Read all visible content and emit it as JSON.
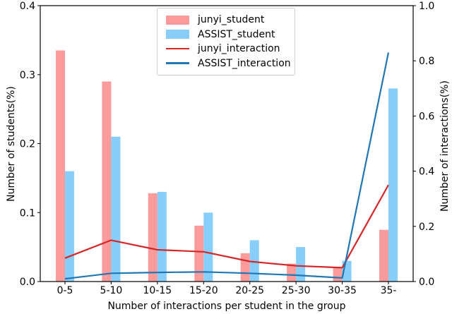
{
  "chart_data": {
    "type": "bar",
    "note_composite": "grouped bars on left axis + two line series on right axis",
    "categories": [
      "0-5",
      "5-10",
      "10-15",
      "15-20",
      "20-25",
      "25-30",
      "30-35",
      "35-"
    ],
    "bar_series": [
      {
        "name": "junyi_student",
        "color": "#fb9b9b",
        "axis": "left",
        "values": [
          0.335,
          0.29,
          0.128,
          0.081,
          0.041,
          0.026,
          0.021,
          0.075
        ]
      },
      {
        "name": "ASSIST_student",
        "color": "#87cefa",
        "axis": "left",
        "values": [
          0.16,
          0.21,
          0.13,
          0.1,
          0.06,
          0.05,
          0.03,
          0.28
        ]
      }
    ],
    "line_series": [
      {
        "name": "junyi_interaction",
        "color": "#d62728",
        "axis": "right",
        "values": [
          0.085,
          0.15,
          0.115,
          0.108,
          0.073,
          0.057,
          0.05,
          0.35
        ]
      },
      {
        "name": "ASSIST_interaction",
        "color": "#1f77b4",
        "axis": "right",
        "values": [
          0.01,
          0.03,
          0.033,
          0.035,
          0.03,
          0.023,
          0.013,
          0.83
        ]
      }
    ],
    "xlabel": "Number of interactions per student in the group",
    "ylabel_left": "Number of students(%)",
    "ylabel_right": "Number of interactions(%)",
    "ylim_left": [
      0,
      0.4
    ],
    "ylim_right": [
      0,
      1.0
    ],
    "yticks_left": [
      "0.0",
      "0.1",
      "0.2",
      "0.3",
      "0.4"
    ],
    "yticks_right": [
      "0.0",
      "0.2",
      "0.4",
      "0.6",
      "0.8",
      "1.0"
    ],
    "grid": false,
    "legend_position": "upper-center-left",
    "legend": [
      "junyi_student",
      "ASSIST_student",
      "junyi_interaction",
      "ASSIST_interaction"
    ],
    "frame_color": "#000000"
  }
}
